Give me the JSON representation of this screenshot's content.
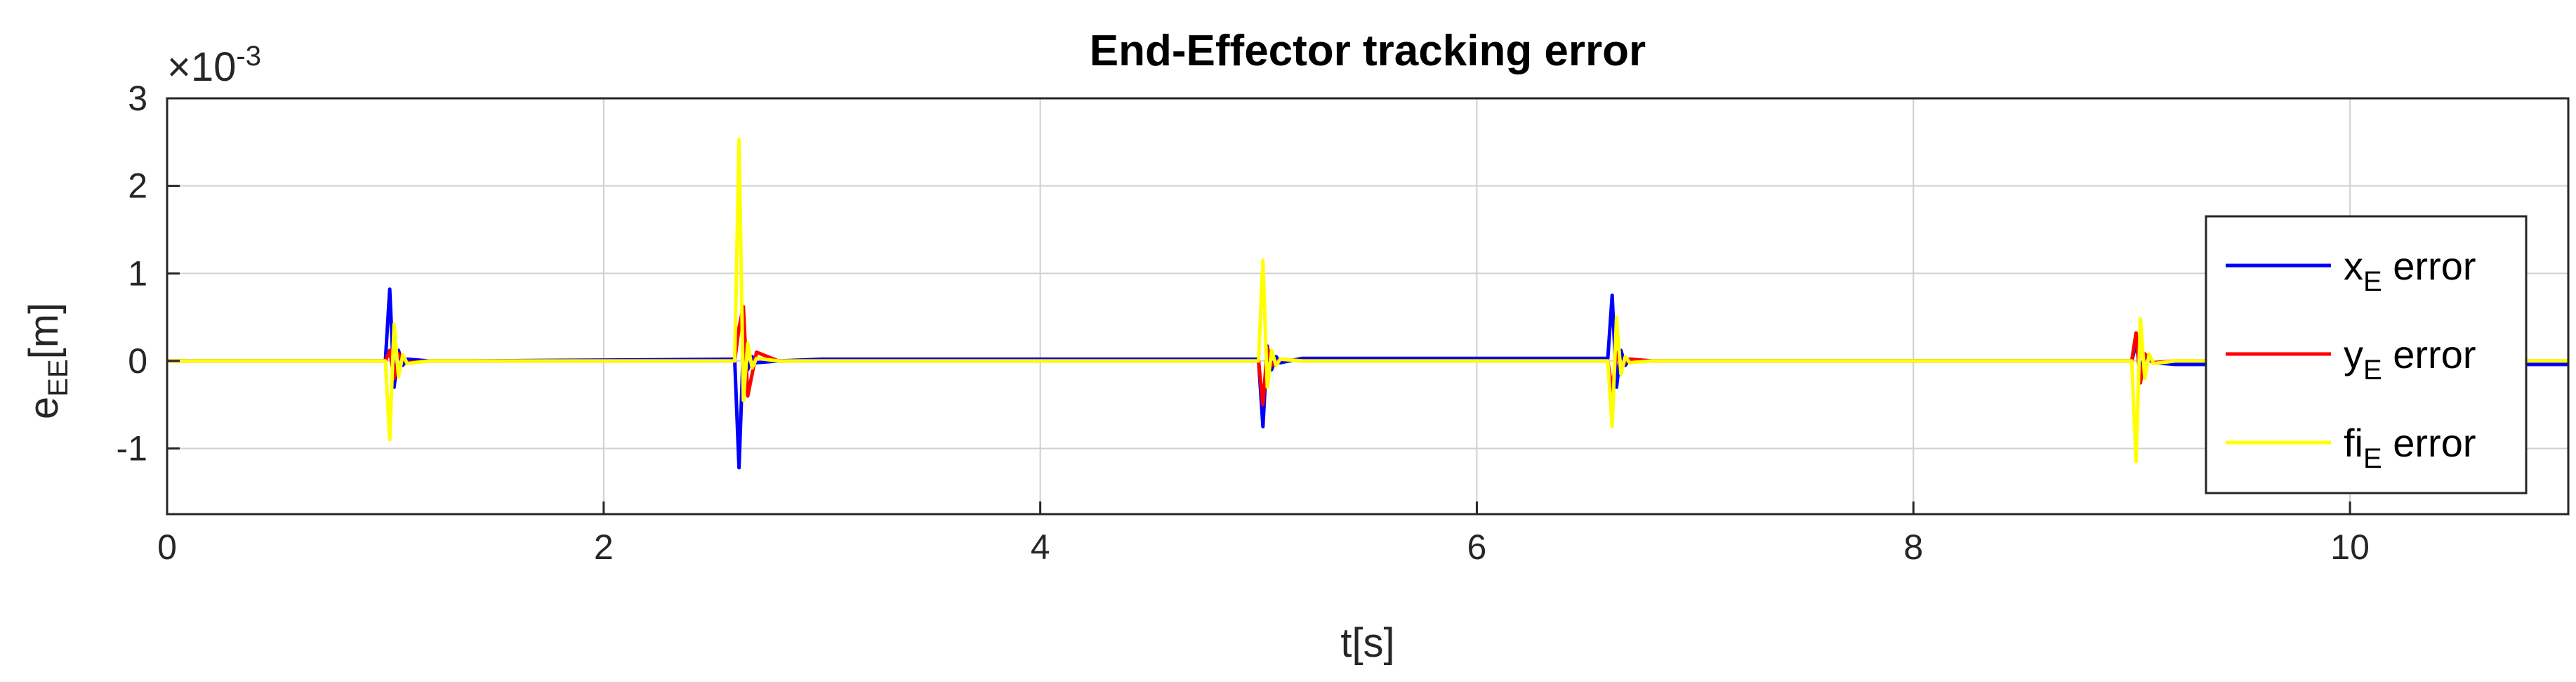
{
  "chart_data": {
    "type": "line",
    "title": "End-Effector tracking error",
    "xlabel": "t[s]",
    "ylabel": {
      "base": "e",
      "sub": "EE",
      "unit": "[m]"
    },
    "y_exponent_label": {
      "prefix": "×10",
      "exp": "-3"
    },
    "xlim": [
      0,
      11
    ],
    "ylim": [
      -1.75,
      3.0
    ],
    "y_scale_factor": 0.001,
    "xticks": [
      0,
      2,
      4,
      6,
      8,
      10
    ],
    "yticks": [
      -1,
      0,
      1,
      2,
      3
    ],
    "grid": true,
    "legend": {
      "location": "right",
      "entries": [
        {
          "base": "x",
          "sub": "E",
          "rest": " error",
          "color": "#0000ff"
        },
        {
          "base": "y",
          "sub": "E",
          "rest": " error",
          "color": "#ff0000"
        },
        {
          "base": "fi",
          "sub": "E",
          "rest": " error",
          "color": "#ffff00"
        }
      ]
    },
    "series": [
      {
        "name": "x_E error",
        "color": "#0000ff",
        "x": [
          0,
          1.0,
          1.02,
          1.04,
          1.06,
          1.08,
          1.1,
          1.2,
          1.4,
          2.6,
          2.62,
          2.64,
          2.66,
          2.68,
          2.7,
          2.8,
          3.0,
          5.0,
          5.02,
          5.04,
          5.06,
          5.08,
          5.1,
          5.2,
          5.4,
          6.6,
          6.62,
          6.64,
          6.66,
          6.68,
          6.7,
          6.8,
          7.0,
          9.0,
          9.02,
          9.04,
          9.06,
          9.1,
          9.2,
          11.0
        ],
        "y": [
          0,
          0,
          0.82,
          -0.3,
          0.12,
          -0.05,
          0.02,
          0,
          0,
          0.02,
          -1.22,
          0.18,
          -0.1,
          0.05,
          -0.02,
          0,
          0.02,
          0.02,
          -0.75,
          0.17,
          -0.1,
          0.05,
          -0.02,
          0.03,
          0.03,
          0.03,
          0.75,
          -0.3,
          0.12,
          -0.05,
          0.02,
          0,
          0,
          0,
          0.2,
          -0.1,
          0.05,
          -0.02,
          -0.04,
          -0.04
        ]
      },
      {
        "name": "y_E error",
        "color": "#ff0000",
        "x": [
          0,
          1.0,
          1.02,
          1.04,
          1.06,
          1.1,
          1.2,
          2.6,
          2.62,
          2.64,
          2.66,
          2.7,
          2.8,
          5.0,
          5.02,
          5.04,
          5.06,
          5.1,
          5.2,
          6.6,
          6.62,
          6.64,
          6.66,
          6.7,
          6.8,
          9.0,
          9.02,
          9.04,
          9.06,
          9.1,
          9.2,
          11.0
        ],
        "y": [
          0,
          0,
          0.12,
          -0.2,
          0.08,
          -0.02,
          0,
          0,
          0.38,
          0.62,
          -0.4,
          0.1,
          0,
          0,
          -0.5,
          0.15,
          -0.05,
          0.02,
          0,
          0,
          -0.35,
          0.1,
          -0.05,
          0.02,
          0,
          0,
          0.32,
          -0.25,
          0.08,
          -0.02,
          0,
          0
        ]
      },
      {
        "name": "fi_E error",
        "color": "#ffff00",
        "x": [
          0,
          1.0,
          1.02,
          1.04,
          1.06,
          1.08,
          1.1,
          1.2,
          2.6,
          2.62,
          2.64,
          2.66,
          2.68,
          2.7,
          2.8,
          5.0,
          5.02,
          5.04,
          5.06,
          5.08,
          5.1,
          5.2,
          6.6,
          6.62,
          6.64,
          6.66,
          6.68,
          6.7,
          6.8,
          9.0,
          9.02,
          9.04,
          9.06,
          9.08,
          9.1,
          9.2,
          11.0
        ],
        "y": [
          0,
          0,
          -0.9,
          0.42,
          -0.18,
          0.07,
          -0.03,
          0,
          0,
          2.53,
          -0.45,
          0.2,
          -0.08,
          0.03,
          0,
          0,
          1.15,
          -0.3,
          0.12,
          -0.05,
          0.02,
          0,
          0,
          -0.75,
          0.5,
          -0.15,
          0.05,
          -0.02,
          0,
          0,
          -1.15,
          0.48,
          -0.2,
          0.08,
          -0.03,
          0,
          0
        ]
      }
    ]
  }
}
